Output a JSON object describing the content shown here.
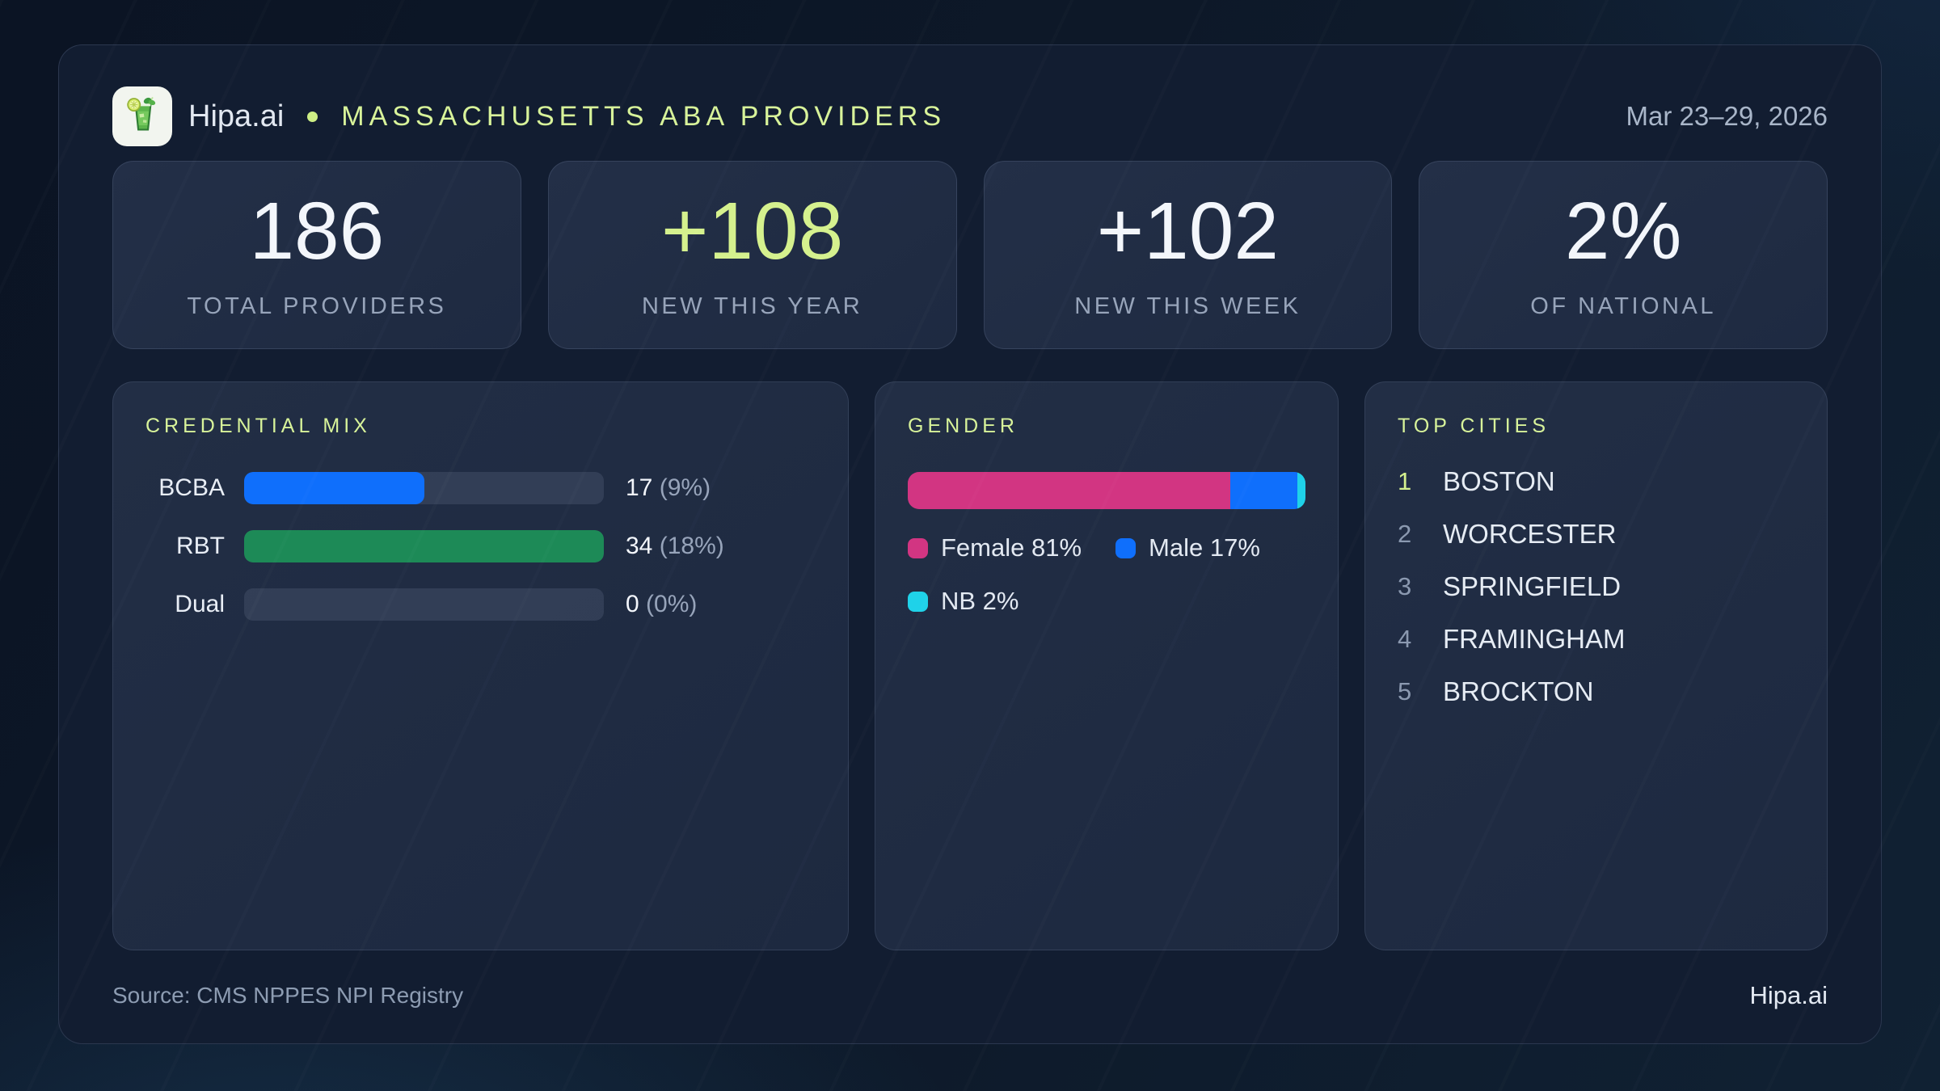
{
  "theme": {
    "accent_green": "#d5f18e",
    "page_bg": "#0c1526",
    "board_bg": "#121d31",
    "panel_bg": "#222e45",
    "blue": "#0f6ffc",
    "bar_green": "#1d8a57",
    "pink": "#d23582",
    "cyan": "#1fd2e9"
  },
  "header": {
    "brand": "Hipa.ai",
    "separator_dot": "•",
    "title": "MASSACHUSETTS ABA PROVIDERS",
    "date_range": "Mar 23–29, 2026",
    "logo_icon": "mojito-glass-icon"
  },
  "stats": [
    {
      "value": "186",
      "label": "TOTAL PROVIDERS",
      "color": "#f3f6fb"
    },
    {
      "value": "+108",
      "label": "NEW THIS YEAR",
      "color": "#d5f18e"
    },
    {
      "value": "+102",
      "label": "NEW THIS WEEK",
      "color": "#f3f6fb"
    },
    {
      "value": "2%",
      "label": "OF NATIONAL",
      "color": "#f3f6fb"
    }
  ],
  "credential_mix": {
    "title": "CREDENTIAL MIX",
    "bar_scale_max": 34,
    "rows": [
      {
        "label": "BCBA",
        "count": "17",
        "pct": "(9%)",
        "fill_pct": 50,
        "color": "#0f6ffc"
      },
      {
        "label": "RBT",
        "count": "34",
        "pct": "(18%)",
        "fill_pct": 100,
        "color": "#1d8a57"
      },
      {
        "label": "Dual",
        "count": "0",
        "pct": "(0%)",
        "fill_pct": 0,
        "color": "transparent"
      }
    ]
  },
  "gender": {
    "title": "GENDER",
    "segments": [
      {
        "name": "Female",
        "pct": 81,
        "legend_label": "Female 81%",
        "color": "#d23582"
      },
      {
        "name": "Male",
        "pct": 17,
        "legend_label": "Male 17%",
        "color": "#0f6ffc"
      },
      {
        "name": "NB",
        "pct": 2,
        "legend_label": "NB 2%",
        "color": "#1fd2e9"
      }
    ]
  },
  "top_cities": {
    "title": "TOP CITIES",
    "items": [
      {
        "rank": "1",
        "city": "BOSTON",
        "rank_color": "#d5f18e"
      },
      {
        "rank": "2",
        "city": "WORCESTER",
        "rank_color": "#8b99b0"
      },
      {
        "rank": "3",
        "city": "SPRINGFIELD",
        "rank_color": "#8b99b0"
      },
      {
        "rank": "4",
        "city": "FRAMINGHAM",
        "rank_color": "#8b99b0"
      },
      {
        "rank": "5",
        "city": "BROCKTON",
        "rank_color": "#8b99b0"
      }
    ]
  },
  "footer": {
    "source": "Source: CMS NPPES NPI Registry",
    "brand": "Hipa.ai"
  },
  "chart_data": [
    {
      "type": "bar",
      "orientation": "horizontal",
      "title": "CREDENTIAL MIX",
      "categories": [
        "BCBA",
        "RBT",
        "Dual"
      ],
      "values": [
        17,
        34,
        0
      ],
      "value_labels": [
        "17 (9%)",
        "34 (18%)",
        "0 (0%)"
      ],
      "pct_of_total": [
        9,
        18,
        0
      ],
      "bar_scale_max": 34,
      "bar_colors": [
        "#0f6ffc",
        "#1d8a57",
        "none"
      ],
      "grid": false,
      "xlabel": "",
      "ylabel": ""
    },
    {
      "type": "bar",
      "subtype": "stacked-100pct",
      "title": "GENDER",
      "series": [
        {
          "name": "Female",
          "values": [
            81
          ]
        },
        {
          "name": "Male",
          "values": [
            17
          ]
        },
        {
          "name": "NB",
          "values": [
            2
          ]
        }
      ],
      "unit": "%",
      "colors": [
        "#d23582",
        "#0f6ffc",
        "#1fd2e9"
      ],
      "legend_position": "below-bar"
    },
    {
      "type": "table",
      "title": "TOP CITIES",
      "columns": [
        "rank",
        "city"
      ],
      "rows": [
        [
          "1",
          "BOSTON"
        ],
        [
          "2",
          "WORCESTER"
        ],
        [
          "3",
          "SPRINGFIELD"
        ],
        [
          "4",
          "FRAMINGHAM"
        ],
        [
          "5",
          "BROCKTON"
        ]
      ]
    }
  ]
}
